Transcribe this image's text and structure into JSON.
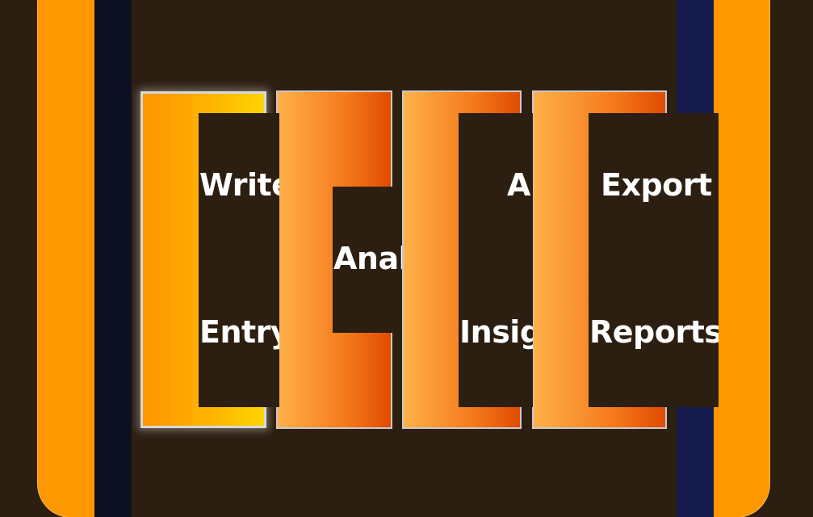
{
  "steps": [
    {
      "line1": "Write",
      "line2": "Entry"
    },
    {
      "line1": "Anal"
    },
    {
      "line1": "A",
      "line2": "Insig"
    },
    {
      "line1": "Export",
      "line2": "Reports"
    }
  ],
  "colors": {
    "background": "#2c1f11",
    "accent": "#ff9800",
    "rail_left": "#0d1020",
    "rail_right": "#151a4d"
  }
}
